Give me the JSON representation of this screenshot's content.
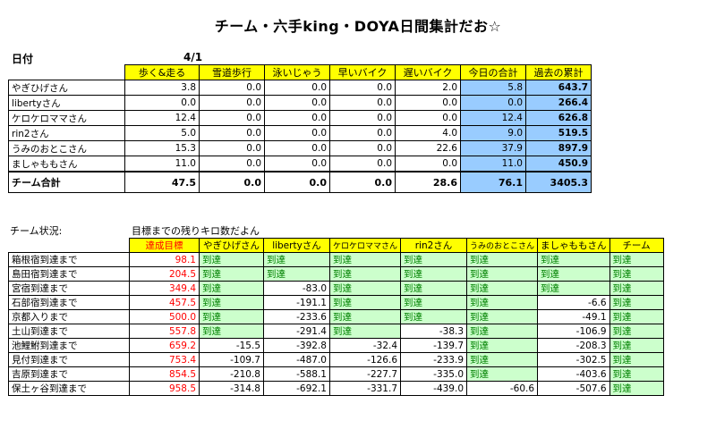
{
  "title": "チーム・六手king・DOYA日間集計だお☆",
  "date_label": "日付",
  "date_value": "4/1",
  "daily": {
    "headers": [
      "歩く&走る",
      "雪道歩行",
      "泳いじゃう",
      "早いバイク",
      "遅いバイク",
      "今日の合計",
      "過去の累計"
    ],
    "rows": [
      {
        "name": "やぎひげさん",
        "values": [
          "3.8",
          "0.0",
          "0.0",
          "0.0",
          "2.0",
          "5.8",
          "643.7"
        ]
      },
      {
        "name": "libertyさん",
        "values": [
          "0.0",
          "0.0",
          "0.0",
          "0.0",
          "0.0",
          "0.0",
          "266.4"
        ]
      },
      {
        "name": "ケロケロママさん",
        "values": [
          "12.4",
          "0.0",
          "0.0",
          "0.0",
          "0.0",
          "12.4",
          "626.8"
        ]
      },
      {
        "name": "rin2さん",
        "values": [
          "5.0",
          "0.0",
          "0.0",
          "0.0",
          "4.0",
          "9.0",
          "519.5"
        ]
      },
      {
        "name": "うみのおとこさん",
        "values": [
          "15.3",
          "0.0",
          "0.0",
          "0.0",
          "22.6",
          "37.9",
          "897.9"
        ]
      },
      {
        "name": "ましゃももさん",
        "values": [
          "11.0",
          "0.0",
          "0.0",
          "0.0",
          "0.0",
          "11.0",
          "450.9"
        ]
      }
    ],
    "total": {
      "name": "チーム合計",
      "values": [
        "47.5",
        "0.0",
        "0.0",
        "0.0",
        "28.6",
        "76.1",
        "3405.3"
      ]
    }
  },
  "status": {
    "label": "チーム状況:",
    "note": "目標までの残りキロ数だよん",
    "headers": [
      "達成目標",
      "やぎひげさん",
      "libertyさん",
      "ケロケロママさん",
      "rin2さん",
      "うみのおとこさん",
      "ましゃももさん",
      "チーム"
    ],
    "rows": [
      {
        "dest": "箱根宿到達まで",
        "target": "98.1",
        "cells": [
          "到達",
          "到達",
          "到達",
          "到達",
          "到達",
          "到達",
          "到達"
        ]
      },
      {
        "dest": "島田宿到達まで",
        "target": "204.5",
        "cells": [
          "到達",
          "到達",
          "到達",
          "到達",
          "到達",
          "到達",
          "到達"
        ]
      },
      {
        "dest": "宮宿到達まで",
        "target": "349.4",
        "cells": [
          "到達",
          "-83.0",
          "到達",
          "到達",
          "到達",
          "到達",
          "到達"
        ]
      },
      {
        "dest": "石部宿到達まで",
        "target": "457.5",
        "cells": [
          "到達",
          "-191.1",
          "到達",
          "到達",
          "到達",
          "-6.6",
          "到達"
        ]
      },
      {
        "dest": "京都入りまで",
        "target": "500.0",
        "cells": [
          "到達",
          "-233.6",
          "到達",
          "到達",
          "到達",
          "-49.1",
          "到達"
        ]
      },
      {
        "dest": "土山到達まで",
        "target": "557.8",
        "cells": [
          "到達",
          "-291.4",
          "到達",
          "-38.3",
          "到達",
          "-106.9",
          "到達"
        ]
      },
      {
        "dest": "池鯉鮒到達まで",
        "target": "659.2",
        "cells": [
          "-15.5",
          "-392.8",
          "-32.4",
          "-139.7",
          "到達",
          "-208.3",
          "到達"
        ]
      },
      {
        "dest": "見付到達まで",
        "target": "753.4",
        "cells": [
          "-109.7",
          "-487.0",
          "-126.6",
          "-233.9",
          "到達",
          "-302.5",
          "到達"
        ]
      },
      {
        "dest": "吉原到達まで",
        "target": "854.5",
        "cells": [
          "-210.8",
          "-588.1",
          "-227.7",
          "-335.0",
          "到達",
          "-403.6",
          "到達"
        ]
      },
      {
        "dest": "保土ヶ谷到達まで",
        "target": "958.5",
        "cells": [
          "-314.8",
          "-692.1",
          "-331.7",
          "-439.0",
          "-60.6",
          "-507.6",
          "到達"
        ]
      }
    ]
  }
}
